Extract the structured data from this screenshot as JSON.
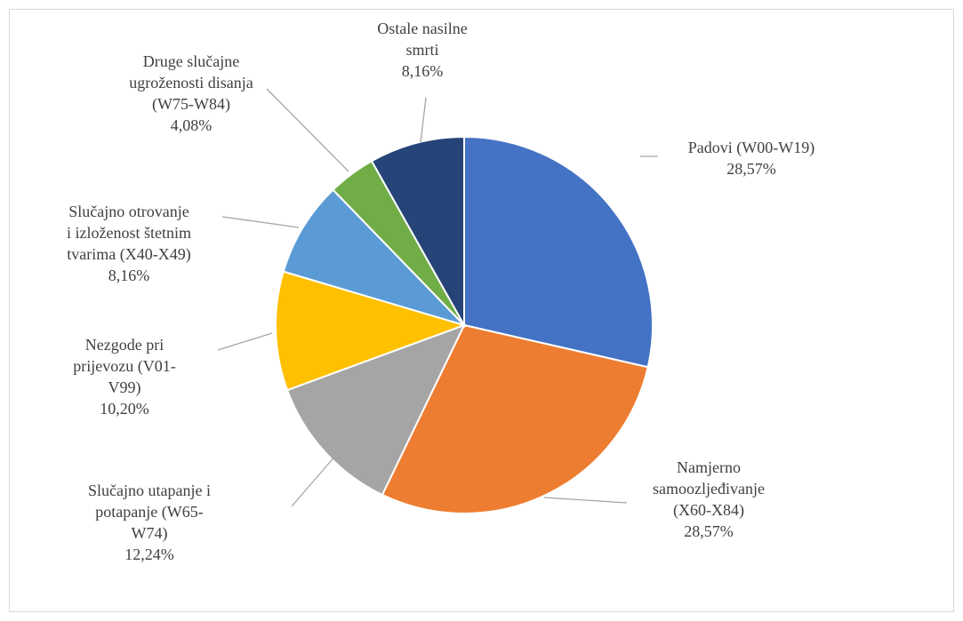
{
  "chart_data": {
    "type": "pie",
    "categories": [
      "Padovi (W00-W19)",
      "Namjerno samoozljeđivanje (X60-X84)",
      "Slučajno utapanje i potapanje (W65-W74)",
      "Nezgode pri prijevozu (V01-V99)",
      "Slučajno otrovanje i izloženost štetnim tvarima (X40-X49)",
      "Druge slučajne ugroženosti disanja (W75-W84)",
      "Ostale nasilne smrti"
    ],
    "values": [
      28.57,
      28.57,
      12.24,
      10.2,
      8.16,
      4.08,
      8.16
    ],
    "value_labels": [
      "28,57%",
      "28,57%",
      "12,24%",
      "10,20%",
      "8,16%",
      "4,08%",
      "8,16%"
    ],
    "colors": [
      "#4472c4",
      "#ed7d31",
      "#a5a5a5",
      "#ffc000",
      "#5b9bd5",
      "#70ad47",
      "#264478"
    ]
  }
}
